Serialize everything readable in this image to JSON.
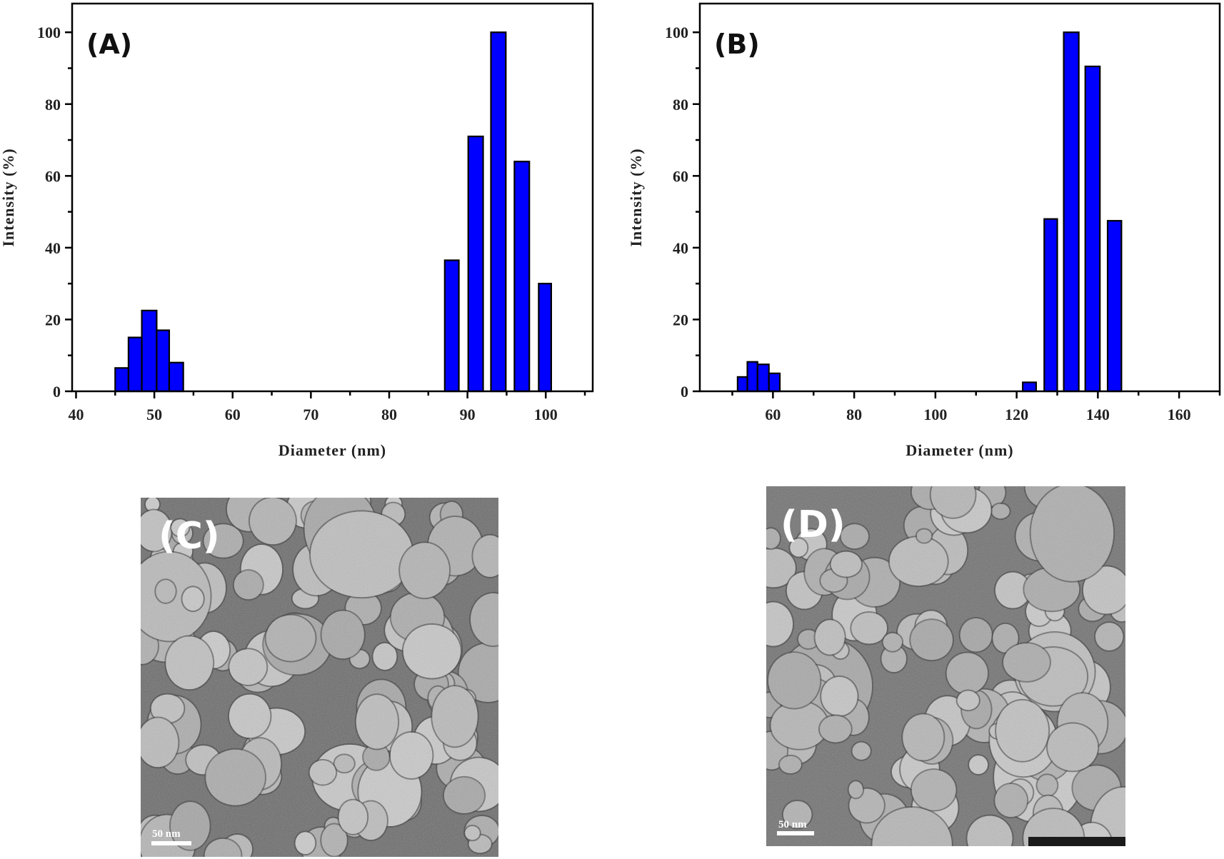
{
  "chart_data": [
    {
      "type": "bar",
      "panel_label": "(A)",
      "xlabel": "Diameter (nm)",
      "ylabel": "Intensity (%)",
      "xlim": [
        39.5,
        106
      ],
      "ylim": [
        0,
        108
      ],
      "xticks": [
        40,
        50,
        60,
        70,
        80,
        90,
        100
      ],
      "yticks": [
        0,
        20,
        40,
        60,
        80,
        100
      ],
      "grid": false,
      "bar_color": "#0000FF",
      "bars": [
        {
          "x": 45.0,
          "w": 1.7,
          "y": 6.5
        },
        {
          "x": 46.7,
          "w": 1.7,
          "y": 15
        },
        {
          "x": 48.4,
          "w": 1.9,
          "y": 22.5
        },
        {
          "x": 50.3,
          "w": 1.6,
          "y": 17
        },
        {
          "x": 51.9,
          "w": 1.8,
          "y": 8
        },
        {
          "x": 87.1,
          "w": 1.8,
          "y": 36.5
        },
        {
          "x": 90.1,
          "w": 1.9,
          "y": 71
        },
        {
          "x": 93.0,
          "w": 1.9,
          "y": 100
        },
        {
          "x": 96.0,
          "w": 1.9,
          "y": 64
        },
        {
          "x": 99.1,
          "w": 1.6,
          "y": 30
        }
      ]
    },
    {
      "type": "bar",
      "panel_label": "(B)",
      "xlabel": "Diameter (nm)",
      "ylabel": "Intensity (%)",
      "xlim": [
        42,
        170
      ],
      "ylim": [
        0,
        108
      ],
      "xticks": [
        60,
        80,
        100,
        120,
        140,
        160
      ],
      "yticks": [
        0,
        20,
        40,
        60,
        80,
        100
      ],
      "grid": false,
      "bar_color": "#0000FF",
      "bars": [
        {
          "x": 51.3,
          "w": 2.4,
          "y": 4
        },
        {
          "x": 53.7,
          "w": 2.5,
          "y": 8.2
        },
        {
          "x": 56.2,
          "w": 2.8,
          "y": 7.5
        },
        {
          "x": 59.0,
          "w": 2.7,
          "y": 5
        },
        {
          "x": 121.5,
          "w": 3.3,
          "y": 2.5
        },
        {
          "x": 126.8,
          "w": 3.2,
          "y": 48
        },
        {
          "x": 131.6,
          "w": 3.7,
          "y": 100
        },
        {
          "x": 136.9,
          "w": 3.6,
          "y": 90.5
        },
        {
          "x": 142.4,
          "w": 3.4,
          "y": 47.5
        }
      ]
    }
  ],
  "tem_images": [
    {
      "label": "(C)",
      "scale_bar": "50 nm"
    },
    {
      "label": "(D)",
      "scale_bar": "50 nm"
    }
  ]
}
